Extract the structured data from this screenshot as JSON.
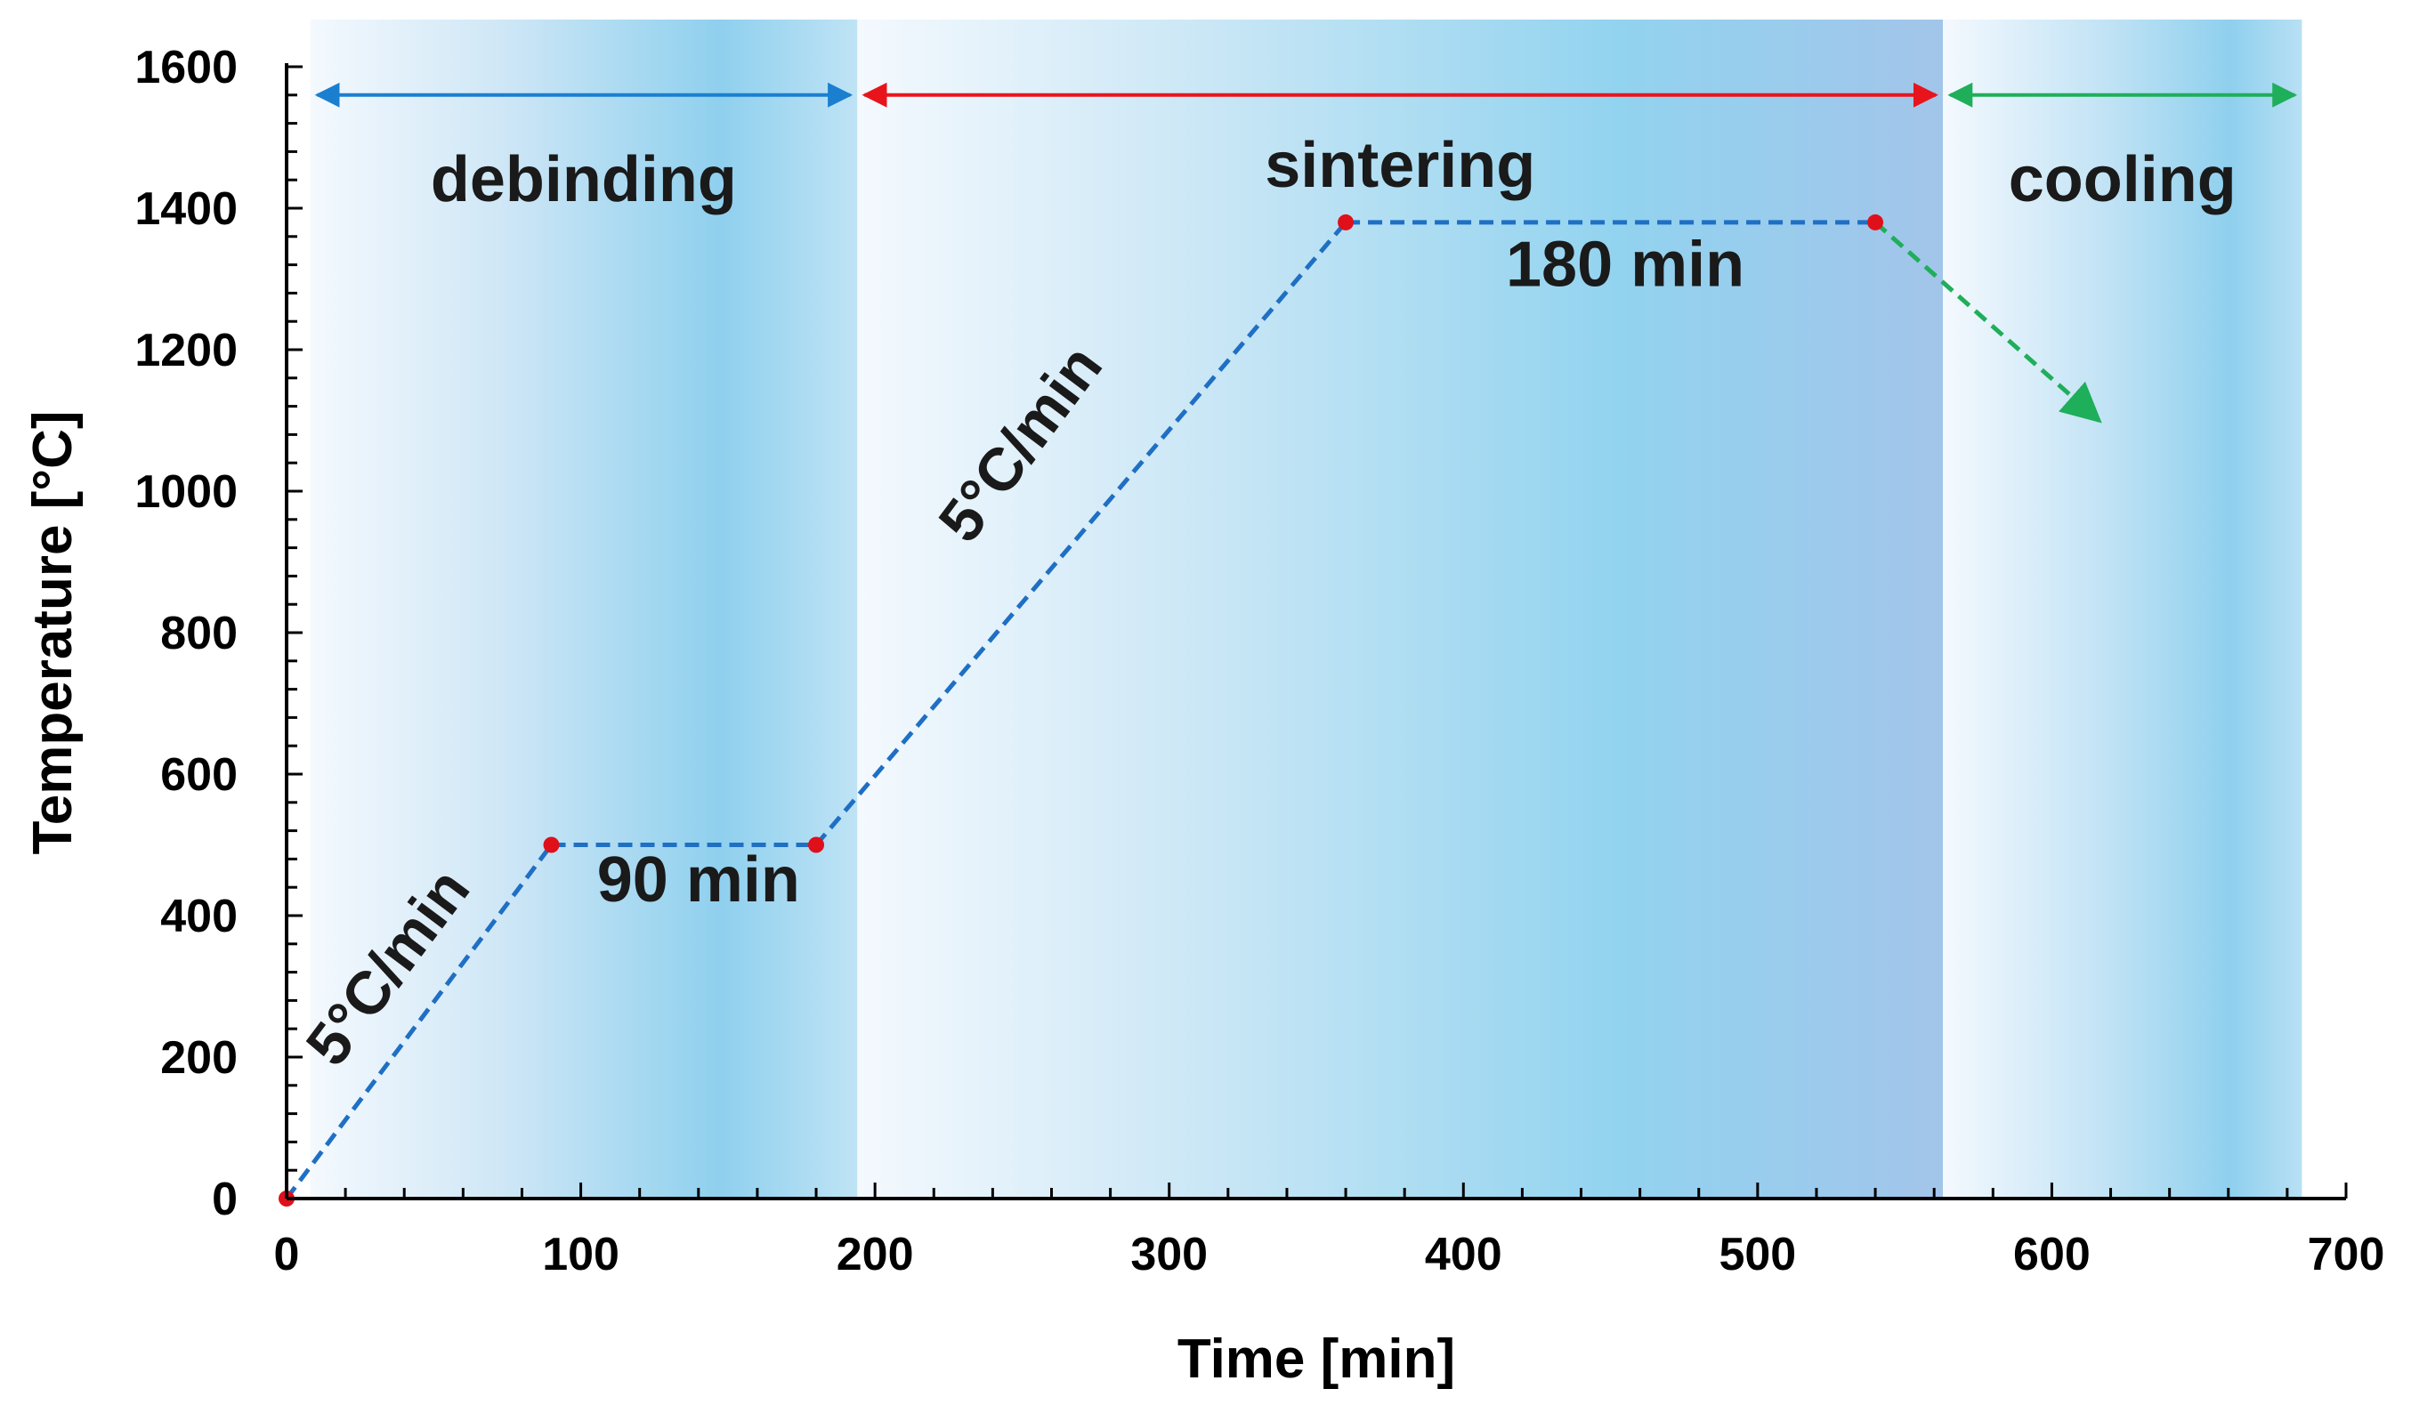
{
  "chart_data": {
    "type": "line",
    "xlabel": "Time [min]",
    "ylabel": "Temperature [°C]",
    "xlim": [
      0,
      700
    ],
    "ylim": [
      0,
      1600
    ],
    "xticks": [
      "0",
      "100",
      "200",
      "300",
      "400",
      "500",
      "600",
      "700"
    ],
    "yticks": [
      "0",
      "200",
      "400",
      "600",
      "800",
      "1000",
      "1200",
      "1400",
      "1600"
    ],
    "grid": false,
    "series": [
      {
        "x": [
          0,
          90,
          180,
          360,
          540
        ],
        "y": [
          0,
          500,
          500,
          1380,
          1380
        ],
        "style": "dashed",
        "color": "#1f6fc4",
        "marker_color": "#e0101a"
      },
      {
        "x": [
          540,
          616
        ],
        "y": [
          1380,
          1100
        ],
        "style": "dashed",
        "color": "#1fae5a",
        "arrow": true
      }
    ],
    "phases": [
      {
        "label": "debinding",
        "x_range": [
          8,
          194
        ],
        "arrow_color": "#1b7fcf"
      },
      {
        "label": "sintering",
        "x_range": [
          194,
          563
        ],
        "arrow_color": "#e8141c"
      },
      {
        "label": "cooling",
        "x_range": [
          563,
          685
        ],
        "arrow_color": "#1fae5a"
      }
    ],
    "annotations": [
      {
        "text": "5°C/min",
        "x": 40,
        "y": 310,
        "rotation": "ramp"
      },
      {
        "text": "90 min",
        "x": 140,
        "y": 420
      },
      {
        "text": "5°C/min",
        "x": 255,
        "y": 1050,
        "rotation": "ramp"
      },
      {
        "text": "180 min",
        "x": 455,
        "y": 1290
      }
    ]
  }
}
